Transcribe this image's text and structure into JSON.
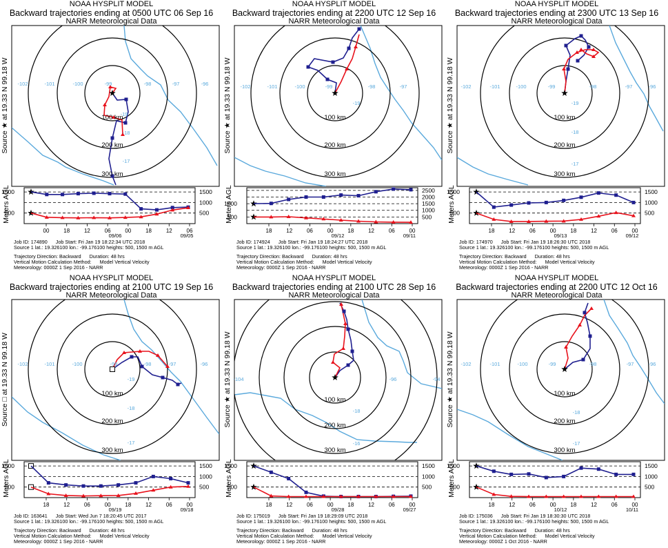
{
  "panels": [
    {
      "model": "NOAA HYSPLIT MODEL",
      "title": "Backward trajectories ending at 0500 UTC 06 Sep 16",
      "meteo": "NARR Meteorological Data",
      "source_label": "Source ★ at   19.33 N   99.18 W",
      "source_symbol": "star",
      "ylabel": "Meters AGL",
      "rings": [
        "100 km",
        "200 km",
        "300 km"
      ],
      "lon_labels": [
        "-102",
        "-101",
        "-100",
        "-99",
        "-98",
        "-97",
        "-96"
      ],
      "lat_labels": [
        "-19",
        "-18",
        "-17"
      ],
      "height_ticks": [
        "1500",
        "1000",
        "500"
      ],
      "time_ticks": [
        "00",
        "18",
        "12",
        "06",
        "00",
        "18",
        "12",
        "06"
      ],
      "date_labels": [
        "09/06",
        "09/05"
      ],
      "job_id": "Job ID: 174890",
      "job_start": "Job Start: Fri Jan 19 18:22:34 UTC 2018",
      "source_line": "Source 1 lat.: 19.326100  lon.: -99.176100  heights: 500, 1500 m AGL",
      "direction": "Trajectory Direction: Backward",
      "duration": "Duration: 48 hrs",
      "vertical": "Vertical Motion Calculation Method:",
      "vertical_val": "Model Vertical Velocity",
      "meteorology": "Meteorology: 0000Z  1 Sep 2016 - NARR"
    },
    {
      "model": "NOAA HYSPLIT MODEL",
      "title": "Backward trajectories ending at 2200 UTC 12 Sep 16",
      "meteo": "NARR Meteorological Data",
      "source_label": "Source ★ at   19.33 N   99.18 W",
      "source_symbol": "star",
      "ylabel": "Meters AGL",
      "rings": [
        "100 km",
        "200 km",
        "300 km"
      ],
      "lon_labels": [
        "-102",
        "-101",
        "-100",
        "-99",
        "-98",
        "-97"
      ],
      "lat_labels": [
        "-19"
      ],
      "height_ticks": [
        "2500",
        "2000",
        "1500",
        "1000",
        "500"
      ],
      "time_ticks": [
        "18",
        "12",
        "06",
        "00",
        "18",
        "12",
        "06",
        "00"
      ],
      "date_labels": [
        "09/12",
        "09/11"
      ],
      "job_id": "Job ID: 174924",
      "job_start": "Job Start: Fri Jan 19 18:24:27 UTC 2018",
      "source_line": "Source 1 lat.: 19.326100  lon.: -99.176100  heights: 500, 1500 m AGL",
      "direction": "Trajectory Direction: Backward",
      "duration": "Duration: 48 hrs",
      "vertical": "Vertical Motion Calculation Method:",
      "vertical_val": "Model Vertical Velocity",
      "meteorology": "Meteorology: 0000Z  1 Sep 2016 - NARR"
    },
    {
      "model": "NOAA HYSPLIT MODEL",
      "title": "Backward trajectories ending at 2300 UTC 13 Sep 16",
      "meteo": "NARR Meteorological Data",
      "source_label": "Source ★ at   19.33 N   99.18 W",
      "source_symbol": "star",
      "ylabel": "Meters AGL",
      "rings": [
        "100 km",
        "200 km",
        "300 km"
      ],
      "lon_labels": [
        "-102",
        "-101",
        "-100",
        "-99",
        "-98",
        "-97",
        "-96"
      ],
      "lat_labels": [
        "-19",
        "-18",
        "-17"
      ],
      "height_ticks": [
        "1500",
        "1000",
        "500"
      ],
      "time_ticks": [
        "18",
        "12",
        "06",
        "00",
        "18",
        "12",
        "06",
        "00"
      ],
      "date_labels": [
        "09/13",
        "09/12"
      ],
      "job_id": "Job ID: 174970",
      "job_start": "Job Start: Fri Jan 19 18:26:30 UTC 2018",
      "source_line": "Source 1 lat.: 19.326100  lon.: -99.176100  heights: 500, 1500 m AGL",
      "direction": "Trajectory Direction: Backward",
      "duration": "Duration: 48 hrs",
      "vertical": "Vertical Motion Calculation Method:",
      "vertical_val": "Model Vertical Velocity",
      "meteorology": "Meteorology: 0000Z  1 Sep 2016 - NARR"
    },
    {
      "model": "NOAA HYSPLIT MODEL",
      "title": "Backward trajectories ending at 2100 UTC 19 Sep 16",
      "meteo": "NARR Meteorological Data",
      "source_label": "Source □ at   19.33 N   99.18 W",
      "source_symbol": "square",
      "ylabel": "Meters AGL",
      "rings": [
        "100 km",
        "200 km",
        "300 km"
      ],
      "lon_labels": [
        "-102",
        "-101",
        "-100",
        "-99",
        "-98",
        "-97",
        "-96"
      ],
      "lat_labels": [
        "-19",
        "-18",
        "-17"
      ],
      "height_ticks": [
        "1500",
        "1000",
        "500"
      ],
      "time_ticks": [
        "18",
        "12",
        "06",
        "00",
        "18",
        "12",
        "06",
        "00"
      ],
      "date_labels": [
        "09/19",
        "09/18"
      ],
      "job_id": "Job ID: 163641",
      "job_start": "Job Start: Wed Jun  7 18:20:45 UTC 2017",
      "source_line": "Source 1 lat.: 19.326100  lon.: -99.176100  heights: 500, 1500 m AGL",
      "direction": "Trajectory Direction: Backward",
      "duration": "Duration: 48 hrs",
      "vertical": "Vertical Motion Calculation Method:",
      "vertical_val": "Model Vertical Velocity",
      "meteorology": "Meteorology: 0000Z  1 Sep 2016 - NARR"
    },
    {
      "model": "NOAA HYSPLIT MODEL",
      "title": "Backward trajectories ending at 2100 UTC 28 Sep 16",
      "meteo": "NARR Meteorological Data",
      "source_label": "Source ★ at   19.33 N   99.18 W",
      "source_symbol": "star",
      "ylabel": "Meters AGL",
      "rings": [
        "100 km",
        "200 km",
        "300 km",
        "400 km"
      ],
      "lon_labels": [
        "-104",
        "-96",
        "-94"
      ],
      "lat_labels": [
        "-18",
        "-16"
      ],
      "height_ticks": [
        "1500",
        "1000",
        "500"
      ],
      "time_ticks": [
        "18",
        "12",
        "06",
        "00",
        "18",
        "12",
        "06",
        "00"
      ],
      "date_labels": [
        "09/28",
        "09/27"
      ],
      "job_id": "Job ID: 175019",
      "job_start": "Job Start: Fri Jan 19 18:29:09 UTC 2018",
      "source_line": "Source 1 lat.: 19.326100  lon.: -99.176100  heights: 500, 1500 m AGL",
      "direction": "Trajectory Direction: Backward",
      "duration": "Duration: 48 hrs",
      "vertical": "Vertical Motion Calculation Method:",
      "vertical_val": "Model Vertical Velocity",
      "meteorology": "Meteorology: 0000Z  1 Sep 2016 - NARR"
    },
    {
      "model": "NOAA HYSPLIT MODEL",
      "title": "Backward trajectories ending at 2200 UTC 12 Oct 16",
      "meteo": "NARR Meteorological Data",
      "source_label": "Source ★ at   19.33 N   99.18 W",
      "source_symbol": "star",
      "ylabel": "Meters AGL",
      "rings": [
        "100 km",
        "200 km",
        "300 km"
      ],
      "lon_labels": [
        "-102",
        "-101",
        "-100",
        "-99",
        "-98",
        "-97",
        "-96"
      ],
      "lat_labels": [
        "-18",
        "-17"
      ],
      "height_ticks": [
        "1500",
        "1000",
        "500"
      ],
      "time_ticks": [
        "18",
        "12",
        "06",
        "00",
        "18",
        "12",
        "06",
        "00"
      ],
      "date_labels": [
        "10/12",
        "10/11"
      ],
      "job_id": "Job ID: 175036",
      "job_start": "Job Start: Fri Jan 19 18:30:30 UTC 2018",
      "source_line": "Source 1 lat.: 19.326100  lon.: -99.176100  heights: 500, 1500 m AGL",
      "direction": "Trajectory Direction: Backward",
      "duration": "Duration: 48 hrs",
      "vertical": "Vertical Motion Calculation Method:",
      "vertical_val": "Model Vertical Velocity",
      "meteorology": "Meteorology: 0000Z  1 Oct 2016 - NARR"
    }
  ],
  "colors": {
    "high_trajectory": "#1f1f8f",
    "low_trajectory": "#e8121c",
    "rivers": "#5aa9dc",
    "grid_labels": "#5aa9dc",
    "rings": "#000000"
  },
  "chart_data": [
    {
      "type": "line",
      "title": "Backward trajectories ending at 0500 UTC 06 Sep 16",
      "ylabel": "Meters AGL",
      "ylim": [
        0,
        1700
      ],
      "series": [
        {
          "values": [
            1500,
            1380,
            1380,
            1420,
            1440,
            1420,
            1400,
            700,
            650,
            760,
            780
          ]
        },
        {
          "values": [
            500,
            300,
            280,
            270,
            280,
            270,
            290,
            320,
            450,
            640,
            750
          ]
        }
      ]
    },
    {
      "type": "line",
      "title": "Backward trajectories ending at 2200 UTC 12 Sep 16",
      "ylabel": "Meters AGL",
      "ylim": [
        0,
        2700
      ],
      "series": [
        {
          "values": [
            1500,
            1520,
            1820,
            2000,
            2000,
            2150,
            2100,
            2400,
            2600,
            2550
          ]
        },
        {
          "values": [
            500,
            500,
            520,
            430,
            350,
            260,
            180,
            130,
            110,
            100
          ]
        }
      ]
    },
    {
      "type": "line",
      "title": "Backward trajectories ending at 2300 UTC 13 Sep 16",
      "ylabel": "Meters AGL",
      "ylim": [
        0,
        1700
      ],
      "series": [
        {
          "values": [
            1500,
            780,
            880,
            980,
            1000,
            1100,
            1250,
            1450,
            1350,
            1000
          ]
        },
        {
          "values": [
            500,
            200,
            100,
            100,
            110,
            120,
            200,
            350,
            520,
            370
          ]
        }
      ]
    },
    {
      "type": "line",
      "title": "Backward trajectories ending at 2100 UTC 19 Sep 16",
      "ylabel": "Meters AGL",
      "ylim": [
        0,
        1700
      ],
      "series": [
        {
          "values": [
            1500,
            700,
            600,
            550,
            550,
            600,
            700,
            1000,
            900,
            700
          ]
        },
        {
          "values": [
            500,
            180,
            100,
            80,
            90,
            100,
            200,
            350,
            500,
            530
          ]
        }
      ]
    },
    {
      "type": "line",
      "title": "Backward trajectories ending at 2100 UTC 28 Sep 16",
      "ylabel": "Meters AGL",
      "ylim": [
        0,
        1700
      ],
      "series": [
        {
          "values": [
            1500,
            1200,
            900,
            250,
            70,
            50,
            50,
            50,
            60,
            70
          ]
        },
        {
          "values": [
            500,
            80,
            50,
            50,
            50,
            50,
            50,
            50,
            50,
            50
          ]
        }
      ]
    },
    {
      "type": "line",
      "title": "Backward trajectories ending at 2200 UTC 12 Oct 16",
      "ylabel": "Meters AGL",
      "ylim": [
        0,
        1700
      ],
      "series": [
        {
          "values": [
            1500,
            1250,
            1100,
            1120,
            950,
            1000,
            1400,
            1350,
            1100,
            1100
          ]
        },
        {
          "values": [
            500,
            150,
            60,
            50,
            50,
            50,
            50,
            50,
            50,
            50
          ]
        }
      ]
    }
  ]
}
